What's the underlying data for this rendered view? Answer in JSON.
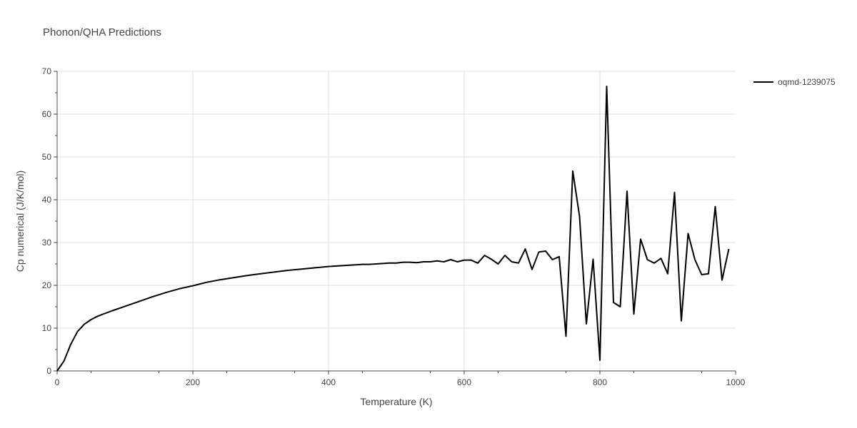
{
  "chart_data": {
    "type": "line",
    "title": "Phonon/QHA Predictions",
    "xlabel": "Temperature (K)",
    "ylabel": "Cp numerical (J/K/mol)",
    "xlim": [
      0,
      1000
    ],
    "ylim": [
      0,
      70
    ],
    "xticks": [
      0,
      200,
      400,
      600,
      800,
      1000
    ],
    "xtick_labels": [
      "0",
      "200",
      "400",
      "600",
      "800",
      "1000"
    ],
    "yticks": [
      0,
      10,
      20,
      30,
      40,
      50,
      60,
      70
    ],
    "ytick_labels": [
      "0",
      "10",
      "20",
      "30",
      "40",
      "50",
      "60",
      "70"
    ],
    "grid": true,
    "legend_position": "top-right",
    "series": [
      {
        "name": "oqmd-1239075",
        "color": "#000000",
        "x": [
          0,
          10,
          20,
          30,
          40,
          50,
          60,
          70,
          80,
          100,
          120,
          140,
          160,
          180,
          200,
          220,
          240,
          260,
          280,
          300,
          320,
          340,
          360,
          380,
          400,
          420,
          440,
          450,
          460,
          470,
          480,
          490,
          500,
          510,
          520,
          530,
          540,
          550,
          560,
          570,
          580,
          590,
          600,
          610,
          620,
          630,
          640,
          650,
          660,
          670,
          680,
          690,
          700,
          710,
          720,
          730,
          740,
          750,
          760,
          770,
          780,
          790,
          800,
          810,
          820,
          830,
          840,
          850,
          860,
          870,
          880,
          890,
          900,
          910,
          920,
          930,
          940,
          950,
          960,
          970,
          980,
          990
        ],
        "y": [
          0,
          2.3,
          6.2,
          9.2,
          10.9,
          12.0,
          12.8,
          13.4,
          14.0,
          15.1,
          16.2,
          17.3,
          18.3,
          19.2,
          19.9,
          20.7,
          21.3,
          21.8,
          22.3,
          22.7,
          23.1,
          23.5,
          23.8,
          24.1,
          24.4,
          24.6,
          24.8,
          24.9,
          24.9,
          25.0,
          25.1,
          25.2,
          25.2,
          25.4,
          25.4,
          25.3,
          25.5,
          25.5,
          25.7,
          25.5,
          26.0,
          25.5,
          25.9,
          25.9,
          25.2,
          27.0,
          26.1,
          25.0,
          27.0,
          25.5,
          25.2,
          28.5,
          23.7,
          27.8,
          28.0,
          26.0,
          26.7,
          8.1,
          46.7,
          36.1,
          11.0,
          26.1,
          2.5,
          66.5,
          16.0,
          15.0,
          42.0,
          13.3,
          30.8,
          26.0,
          25.2,
          26.3,
          22.7,
          41.7,
          11.7,
          32.1,
          26.0,
          22.5,
          22.7,
          38.4,
          21.2,
          28.5
        ]
      }
    ]
  }
}
